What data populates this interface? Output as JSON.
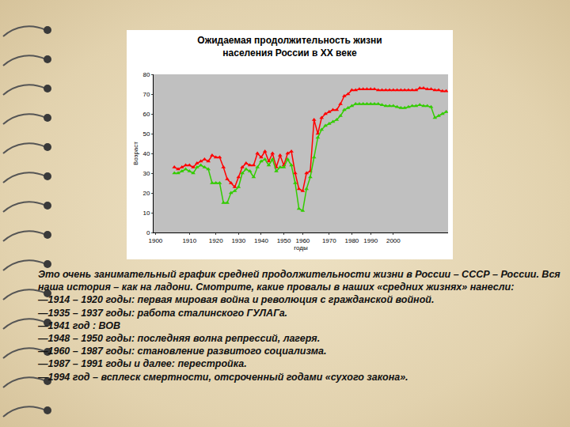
{
  "chart_data": {
    "type": "line",
    "title": "Ожидаемая продолжительность жизни\nнаселения России в XX веке",
    "x_label": "годы",
    "y_label": "Возраст",
    "categories": [
      "1900",
      null,
      null,
      null,
      null,
      null,
      null,
      null,
      null,
      "1910",
      null,
      null,
      null,
      null,
      null,
      null,
      "1920",
      null,
      null,
      null,
      null,
      null,
      "1930",
      null,
      null,
      null,
      null,
      null,
      "1940",
      null,
      null,
      null,
      null,
      null,
      "1950",
      null,
      null,
      null,
      null,
      "1960",
      null,
      null,
      null,
      null,
      null,
      null,
      "1970",
      null,
      null,
      null,
      null,
      null,
      "1980",
      null,
      null,
      null,
      null,
      "1990",
      null,
      null,
      null,
      null,
      null,
      "2000",
      null,
      null,
      null,
      null,
      null,
      null,
      null,
      null,
      null,
      null,
      null,
      null,
      null,
      null
    ],
    "series": [
      {
        "color": "#ff0000",
        "marker": "triangle-up",
        "line_style": "solid",
        "values": [
          null,
          null,
          null,
          null,
          null,
          33,
          32,
          33,
          34,
          34,
          33,
          35,
          36,
          37,
          36,
          39,
          38,
          38,
          33,
          27,
          25,
          23,
          28,
          33,
          35,
          34,
          34,
          40,
          38,
          41,
          36,
          40,
          33,
          39,
          34,
          40,
          41,
          30,
          22,
          21,
          30,
          31,
          57,
          50,
          58,
          60,
          61,
          62,
          62,
          65,
          69,
          70,
          72,
          72,
          72.5,
          72.5,
          72.5,
          72.5,
          72.5,
          72,
          72,
          72,
          72,
          72,
          72,
          72,
          72,
          72,
          72,
          72,
          73,
          73,
          72.5,
          72.5,
          72,
          72,
          71.5,
          71.5
        ]
      },
      {
        "color": "#33cc00",
        "marker": "triangle-up",
        "line_style": "solid",
        "values": [
          null,
          null,
          null,
          null,
          null,
          30,
          30,
          31,
          32,
          31,
          30,
          33,
          34,
          33,
          32,
          25,
          25,
          25,
          15,
          15,
          20,
          21,
          23,
          30,
          32,
          31,
          28,
          33,
          36,
          37,
          34,
          37,
          31,
          33,
          33,
          37,
          34,
          25,
          12,
          11,
          22,
          28,
          38,
          48,
          52,
          54,
          55,
          56,
          57,
          59,
          62,
          63,
          64,
          65,
          65,
          65,
          65,
          65,
          65,
          65,
          64.5,
          64,
          64,
          64,
          63.5,
          63,
          63,
          63.5,
          64,
          64,
          64.5,
          64,
          64,
          63.5,
          58,
          59,
          60,
          61
        ]
      }
    ],
    "ylim": [
      0,
      80
    ],
    "yticks": [
      0,
      10,
      20,
      30,
      40,
      50,
      60,
      70,
      80
    ],
    "grid": false
  },
  "slide_text": {
    "intro": "Это очень занимательный график средней продолжительности жизни в России – СССР – России. Вся наша история – как на ладони. Смотрите, какие провалы в наших «средних жизнях» нанесли:",
    "items": [
      "—1914 – 1920 годы: первая мировая война и революция с гражданской войной.",
      "—1935 – 1937 годы: работа сталинского ГУЛАГа.",
      "—1941 год : ВОВ",
      "—1948 – 1950 годы: последняя волна репрессий, лагеря.",
      "—1960 – 1987 годы: становление развитого социализма.",
      "—1987 – 1991 годы и далее: перестройка.",
      "—1994 год – всплеск смертности, отсроченный годами «сухого закона»."
    ]
  }
}
